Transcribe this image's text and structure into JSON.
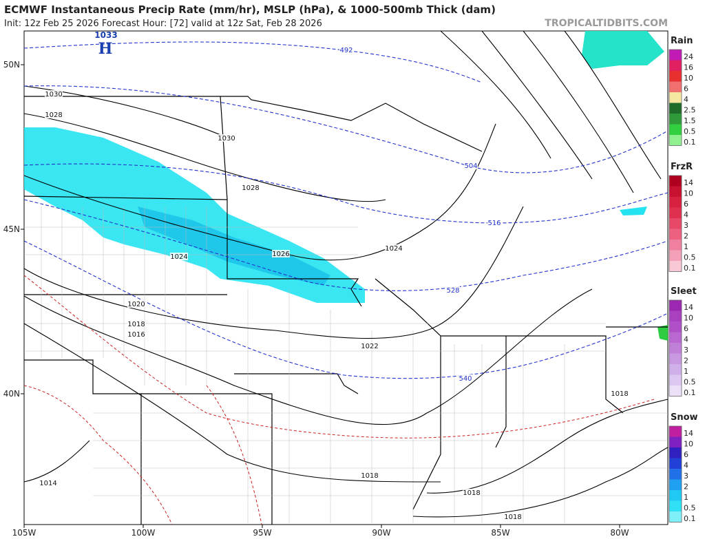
{
  "header": {
    "title": "ECMWF Instantaneous Precip Rate (mm/hr), MSLP (hPa), & 1000-500mb Thick (dam)",
    "subtitle": "Init: 12z Feb 25 2026   Forecast Hour: [72]   valid at 12z Sat, Feb 28 2026",
    "watermark": "TROPICALTIDBITS.COM"
  },
  "map": {
    "lat_labels": [
      "50N",
      "45N",
      "40N"
    ],
    "lon_labels": [
      "105W",
      "100W",
      "95W",
      "90W",
      "85W",
      "80W"
    ],
    "high": {
      "pressure": "1033",
      "label": "H"
    },
    "isobar_labels": [
      "1030",
      "1028",
      "1030",
      "1028",
      "1024",
      "1026",
      "1024",
      "1020",
      "1018",
      "1016",
      "1022",
      "1018",
      "1018",
      "1018",
      "1018",
      "1014"
    ],
    "thickness_labels": [
      "492",
      "504",
      "516",
      "528",
      "540"
    ]
  },
  "legends": [
    {
      "title": "Rain",
      "levels": [
        "24",
        "16",
        "10",
        "6",
        "4",
        "2.5",
        "1.5",
        "0.5",
        "0.1"
      ],
      "colors": [
        "#c21bb5",
        "#e02060",
        "#e83030",
        "#f07070",
        "#f5e6a0",
        "#1e6b2a",
        "#2e9a3a",
        "#30d040",
        "#90f090"
      ]
    },
    {
      "title": "FrzR",
      "levels": [
        "14",
        "10",
        "6",
        "4",
        "3",
        "2",
        "1",
        "0.5",
        "0.1"
      ],
      "colors": [
        "#b00020",
        "#c81030",
        "#d82040",
        "#e03050",
        "#e84868",
        "#ee6080",
        "#f080a0",
        "#f4a0b8",
        "#f8c8d4"
      ]
    },
    {
      "title": "Sleet",
      "levels": [
        "14",
        "10",
        "6",
        "4",
        "3",
        "2",
        "1",
        "0.5",
        "0.1"
      ],
      "colors": [
        "#9c27b0",
        "#a840c0",
        "#b050c8",
        "#b868d0",
        "#c080d8",
        "#c898e0",
        "#d0b0e8",
        "#dcc8f0",
        "#ece0f8"
      ]
    },
    {
      "title": "Snow",
      "levels": [
        "14",
        "10",
        "6",
        "4",
        "3",
        "2",
        "1",
        "0.5",
        "0.1"
      ],
      "colors": [
        "#c020a0",
        "#8020c0",
        "#3020c0",
        "#2040d8",
        "#2070e8",
        "#20a0f0",
        "#20c8f4",
        "#30e0f4",
        "#80f0f8"
      ]
    }
  ]
}
